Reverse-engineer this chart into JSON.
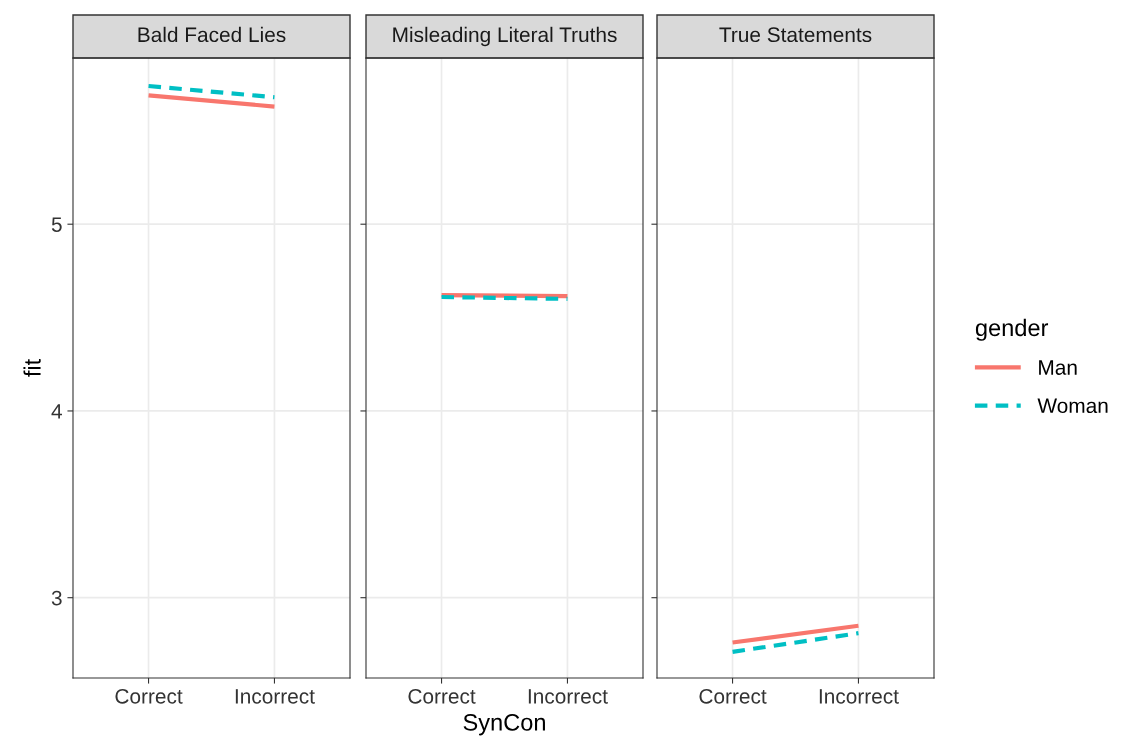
{
  "chart_data": [
    {
      "type": "line",
      "title": "Bald Faced Lies",
      "ylabel": "fit",
      "categories": [
        "Correct",
        "Incorrect"
      ],
      "ylim": [
        2.57,
        5.89
      ],
      "yticks": [
        3,
        4,
        5
      ],
      "grid": true,
      "series": [
        {
          "color": "#f8766d",
          "values": [
            5.69,
            5.63
          ],
          "line_style": "solid"
        },
        {
          "color": "#00bfc4",
          "values": [
            5.74,
            5.68
          ],
          "line_style": "dashed"
        }
      ]
    },
    {
      "type": "line",
      "title": "Misleading Literal Truths",
      "xlabel": "SynCon",
      "categories": [
        "Correct",
        "Incorrect"
      ],
      "ylim": [
        2.57,
        5.89
      ],
      "yticks": [
        3,
        4,
        5
      ],
      "grid": true,
      "tick_labels": "x",
      "series": [
        {
          "color": "#f8766d",
          "values": [
            4.62,
            4.615
          ],
          "line_style": "solid"
        },
        {
          "color": "#00bfc4",
          "values": [
            4.61,
            4.6
          ],
          "line_style": "dashed"
        }
      ]
    },
    {
      "type": "line",
      "title": "True Statements",
      "categories": [
        "Correct",
        "Incorrect"
      ],
      "ylim": [
        2.57,
        5.89
      ],
      "yticks": [
        3,
        4,
        5
      ],
      "grid": true,
      "legend": "right",
      "legend_title": "gender",
      "tick_labels": "x",
      "series": [
        {
          "name": "Man",
          "color": "#f8766d",
          "values": [
            2.76,
            2.85
          ],
          "line_style": "solid"
        },
        {
          "name": "Woman",
          "color": "#00bfc4",
          "values": [
            2.71,
            2.81
          ],
          "line_style": "dashed"
        }
      ]
    }
  ]
}
